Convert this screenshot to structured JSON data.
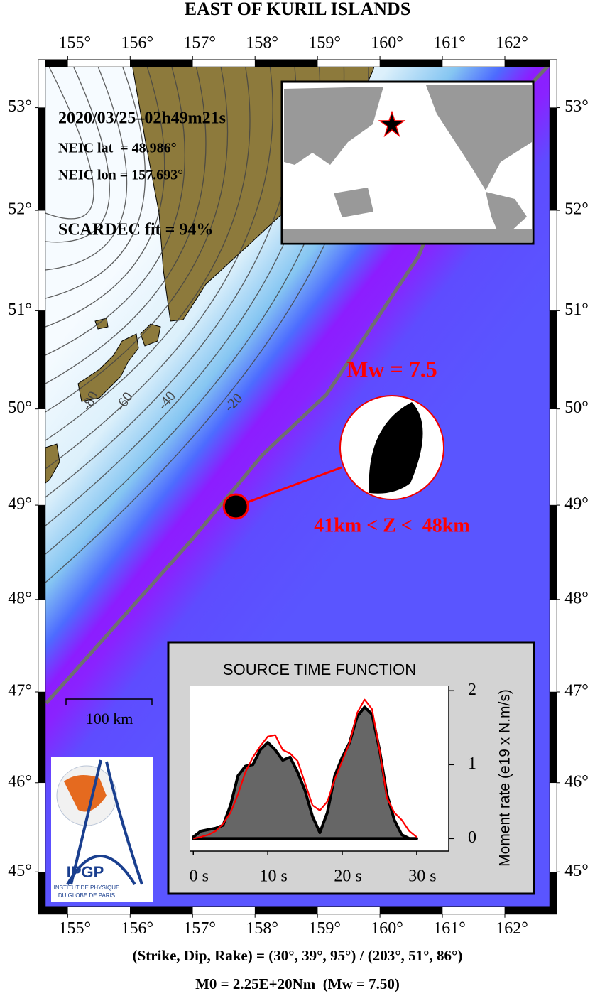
{
  "map": {
    "title": "EAST OF KURIL ISLANDS",
    "xlim": [
      154.53,
      162.83
    ],
    "ylim": [
      44.52,
      53.46
    ],
    "xticks": [
      {
        "value": 155,
        "label": "155°"
      },
      {
        "value": 156,
        "label": "156°"
      },
      {
        "value": 157,
        "label": "157°"
      },
      {
        "value": 158,
        "label": "158°"
      },
      {
        "value": 159,
        "label": "159°"
      },
      {
        "value": 160,
        "label": "160°"
      },
      {
        "value": 161,
        "label": "161°"
      },
      {
        "value": 162,
        "label": "162°"
      }
    ],
    "yticks": [
      {
        "value": 45,
        "label": "45°"
      },
      {
        "value": 46,
        "label": "46°"
      },
      {
        "value": 47,
        "label": "47°"
      },
      {
        "value": 48,
        "label": "48°"
      },
      {
        "value": 49,
        "label": "49°"
      },
      {
        "value": 50,
        "label": "50°"
      },
      {
        "value": 51,
        "label": "51°"
      },
      {
        "value": 52,
        "label": "52°"
      },
      {
        "value": 53,
        "label": "53°"
      }
    ],
    "event": {
      "date": "2020/03/25–02h49m21s",
      "lat": {
        "value": 48.986,
        "label": "NEIC lat  = 48.986°"
      },
      "lon": {
        "value": 157.693,
        "label": "NEIC lon = 157.693°"
      },
      "fit": "SCARDEC fit = 94%",
      "magnitude": "Mw = 7.5",
      "depth": "41km < Z <  48km"
    },
    "contour_labels": [
      "-80",
      "-60",
      "-40",
      "-20"
    ],
    "scale_bar": "100 km",
    "logo": {
      "name": "IPGP",
      "line1": "INSTITUT DE PHYSIQUE",
      "line2": "DU GLOBE DE PARIS"
    },
    "footer": [
      "(Strike, Dip, Rake) = (30°, 39°, 95°) / (203°, 51°, 86°)",
      "M0 = 2.25E+20Nm  (Mw = 7.50)"
    ]
  },
  "chart_data": {
    "type": "area",
    "title": "SOURCE TIME FUNCTION",
    "y_label": "Moment rate (e19 x N.m/s)",
    "x": [
      0,
      1,
      2,
      3,
      4,
      5,
      6,
      7,
      8,
      9,
      10,
      11,
      12,
      13,
      14,
      15,
      16,
      17,
      18,
      19,
      20,
      21,
      22,
      23,
      24,
      25,
      26,
      27,
      28,
      29,
      30
    ],
    "series": [
      {
        "color": "#666666",
        "values": [
          0.02,
          0.1,
          0.12,
          0.14,
          0.18,
          0.45,
          0.85,
          0.98,
          1.0,
          1.2,
          1.3,
          1.2,
          1.06,
          1.1,
          0.9,
          0.65,
          0.3,
          0.08,
          0.35,
          0.85,
          1.1,
          1.3,
          1.65,
          1.78,
          1.68,
          1.2,
          0.6,
          0.25,
          0.05,
          0,
          0
        ]
      },
      {
        "color": "#ff0000",
        "values": [
          0,
          0.02,
          0.05,
          0.1,
          0.2,
          0.35,
          0.6,
          0.9,
          1.1,
          1.25,
          1.38,
          1.4,
          1.2,
          1.15,
          1.05,
          0.75,
          0.45,
          0.38,
          0.5,
          0.8,
          1.05,
          1.3,
          1.7,
          1.88,
          1.75,
          1.2,
          0.55,
          0.35,
          0.25,
          0.1,
          0.02
        ]
      }
    ],
    "xlim": [
      -0.5,
      34.3
    ],
    "ylim": [
      -0.17,
      2.07
    ],
    "xticks": [
      {
        "value": 0,
        "label": "0 s"
      },
      {
        "value": 10,
        "label": "10 s"
      },
      {
        "value": 20,
        "label": "20 s"
      },
      {
        "value": 30,
        "label": "30 s"
      }
    ],
    "yticks": [
      0,
      1,
      2
    ]
  }
}
